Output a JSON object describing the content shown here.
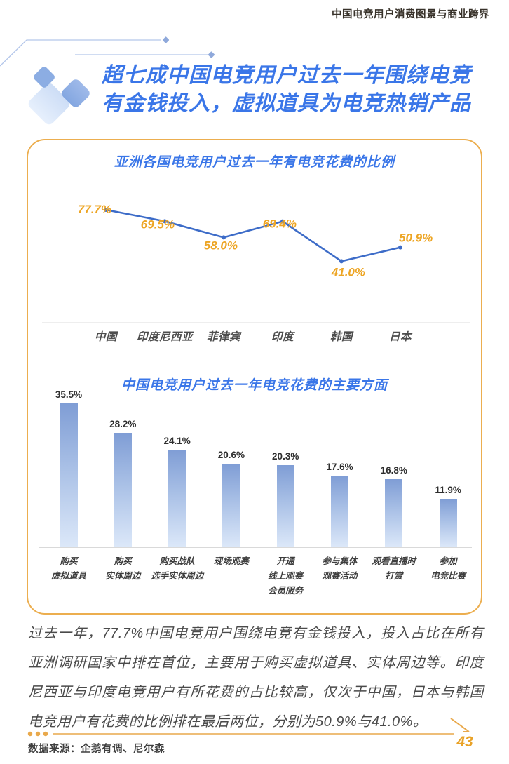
{
  "header": {
    "title": "中国电竞用户消费图景与商业跨界",
    "band_color": "#E8AC4A"
  },
  "headline": {
    "line1": "超七成中国电竞用户过去一年围绕电竞",
    "line2": "有金钱投入，虚拟道具为电竞热销产品",
    "color": "#3A76E8"
  },
  "chart_data": [
    {
      "type": "line",
      "title": "亚洲各国电竞用户过去一年有电竞花费的比例",
      "categories": [
        "中国",
        "印度尼西亚",
        "菲律宾",
        "印度",
        "韩国",
        "日本"
      ],
      "values": [
        77.7,
        69.5,
        58.0,
        69.4,
        41.0,
        50.9
      ],
      "labels": [
        "77.7%",
        "69.5%",
        "58.0%",
        "69.4%",
        "41.0%",
        "50.9%"
      ],
      "unit": "%",
      "line_color": "#3D6CC8",
      "label_color": "#EDA524",
      "grid": "off",
      "legend": "none",
      "ylim": [
        30,
        85
      ]
    },
    {
      "type": "bar",
      "title": "中国电竞用户过去一年电竞花费的主要方面",
      "categories": [
        "购买虚拟道具",
        "购买实体周边",
        "购买战队选手实体周边",
        "现场观赛",
        "开通线上观赛会员服务",
        "参与集体观赛活动",
        "观看直播时打赏",
        "参加电竞比赛"
      ],
      "category_lines": [
        [
          "购买",
          "虚拟道具"
        ],
        [
          "购买",
          "实体周边"
        ],
        [
          "购买战队",
          "选手实体周边"
        ],
        [
          "现场观赛"
        ],
        [
          "开通",
          "线上观赛",
          "会员服务"
        ],
        [
          "参与集体",
          "观赛活动"
        ],
        [
          "观看直播时",
          "打赏"
        ],
        [
          "参加",
          "电竞比赛"
        ]
      ],
      "values": [
        35.5,
        28.2,
        24.1,
        20.6,
        20.3,
        17.6,
        16.8,
        11.9
      ],
      "labels": [
        "35.5%",
        "28.2%",
        "24.1%",
        "20.6%",
        "20.3%",
        "17.6%",
        "16.8%",
        "11.9%"
      ],
      "unit": "%",
      "bar_color_top": "#7F9DD5",
      "bar_color_bottom": "#DCE8F9",
      "grid": "off",
      "legend": "none",
      "ylim": [
        0,
        40
      ]
    }
  ],
  "body_paragraph": {
    "text": "过去一年，77.7%中国电竞用户围绕电竞有金钱投入，投入占比在所有亚洲调研国家中排在首位，主要用于购买虚拟道具、实体周边等。印度尼西亚与印度电竞用户有所花费的占比较高，仅次于中国，日本与韩国电竞用户有花费的比例排在最后两位，分别为50.9%与41.0%。"
  },
  "footer": {
    "source": "数据来源：企鹅有调、尼尔森",
    "page_number": "43",
    "accent_color": "#E9A94C"
  }
}
